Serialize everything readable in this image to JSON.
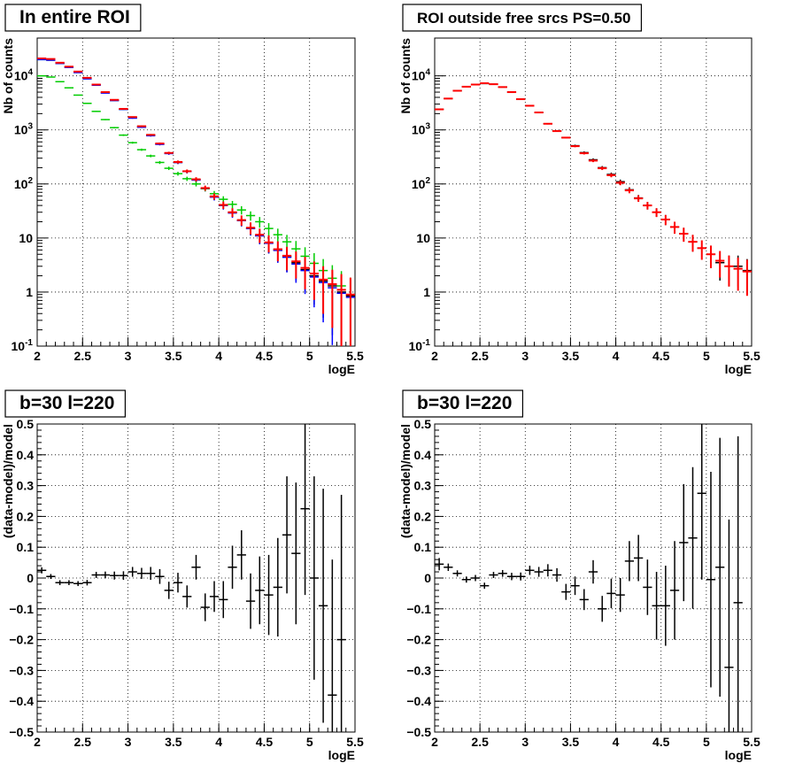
{
  "chart_data": [
    {
      "type": "scatter",
      "title": "In entire ROI",
      "xlabel": "logE",
      "ylabel": "Nb of counts",
      "xlim": [
        2,
        5.5
      ],
      "ylim": [
        0.1,
        50000
      ],
      "yscale": "log",
      "grid": true,
      "xticks": [
        "2",
        "2.5",
        "3",
        "3.5",
        "4",
        "4.5",
        "5",
        "5.5"
      ],
      "yticks": [
        "10^-1",
        "1",
        "10",
        "10^2",
        "10^3",
        "10^4"
      ],
      "series": [
        {
          "color": "#000000",
          "x": [
            2.05,
            2.15,
            2.25,
            2.35,
            2.45,
            2.55,
            2.65,
            2.75,
            2.85,
            2.95,
            3.05,
            3.15,
            3.25,
            3.35,
            3.45,
            3.55,
            3.65,
            3.75,
            3.85,
            3.95,
            4.05,
            4.15,
            4.25,
            4.35,
            4.45,
            4.55,
            4.65,
            4.75,
            4.85,
            4.95,
            5.05,
            5.15,
            5.25,
            5.35,
            5.45
          ],
          "y": [
            20000,
            19500,
            17000,
            14500,
            11800,
            9000,
            6800,
            4900,
            3500,
            2400,
            1700,
            1150,
            800,
            550,
            370,
            250,
            170,
            120,
            82,
            58,
            40,
            30,
            21,
            15,
            11,
            8,
            6,
            4.5,
            3.5,
            2.6,
            2.0,
            1.6,
            1.3,
            1.0,
            0.85
          ]
        },
        {
          "color": "#0000ff",
          "x": [
            2.05,
            2.15,
            2.25,
            2.35,
            2.45,
            2.55,
            2.65,
            2.75,
            2.85,
            2.95,
            3.05,
            3.15,
            3.25,
            3.35,
            3.45,
            3.55,
            3.65,
            3.75,
            3.85,
            3.95,
            4.05,
            4.15,
            4.25,
            4.35,
            4.45,
            4.55,
            4.65,
            4.75,
            4.85,
            4.95,
            5.05,
            5.15,
            5.25,
            5.35,
            5.45
          ],
          "y": [
            20000,
            19500,
            17000,
            14300,
            11500,
            8800,
            6700,
            4800,
            3500,
            2400,
            1650,
            1120,
            780,
            540,
            365,
            250,
            170,
            118,
            82,
            57,
            40,
            29,
            21,
            15,
            11,
            8,
            5.9,
            4.4,
            3.3,
            2.5,
            1.9,
            1.5,
            1.2,
            0.95,
            0.8
          ]
        },
        {
          "color": "#00cc00",
          "x": [
            2.05,
            2.15,
            2.25,
            2.35,
            2.45,
            2.55,
            2.65,
            2.75,
            2.85,
            2.95,
            3.05,
            3.15,
            3.25,
            3.35,
            3.45,
            3.55,
            3.65,
            3.75,
            3.85,
            3.95,
            4.05,
            4.15,
            4.25,
            4.35,
            4.45,
            4.55,
            4.65,
            4.75,
            4.85,
            4.95,
            5.05,
            5.15,
            5.25,
            5.35,
            5.45
          ],
          "y": [
            10000,
            9500,
            7800,
            6000,
            4400,
            3100,
            2200,
            1550,
            1100,
            800,
            580,
            430,
            330,
            250,
            195,
            155,
            125,
            100,
            82,
            66,
            52,
            42,
            33,
            26,
            20,
            15,
            11.5,
            8.5,
            6.3,
            4.6,
            3.4,
            2.5,
            1.8,
            1.3,
            0.9
          ]
        },
        {
          "color": "#ff0000",
          "x": [
            2.05,
            2.15,
            2.25,
            2.35,
            2.45,
            2.55,
            2.65,
            2.75,
            2.85,
            2.95,
            3.05,
            3.15,
            3.25,
            3.35,
            3.45,
            3.55,
            3.65,
            3.75,
            3.85,
            3.95,
            4.05,
            4.15,
            4.25,
            4.35,
            4.45,
            4.55,
            4.65,
            4.75,
            4.85,
            4.95,
            5.05,
            5.15,
            5.25,
            5.35,
            5.45
          ],
          "y": [
            21000,
            20500,
            17500,
            14800,
            12000,
            9200,
            6900,
            5000,
            3600,
            2450,
            1730,
            1170,
            810,
            560,
            375,
            255,
            172,
            122,
            84,
            59,
            41,
            30,
            21.5,
            15.5,
            11.5,
            8.3,
            6.2,
            4.7,
            3.7,
            2.8,
            2.2,
            1.7,
            1.4,
            1.1,
            0.9
          ]
        }
      ]
    },
    {
      "type": "scatter",
      "title": "ROI outside free srcs PS=0.50",
      "xlabel": "logE",
      "ylabel": "Nb of counts",
      "xlim": [
        2,
        5.5
      ],
      "ylim": [
        0.1,
        50000
      ],
      "yscale": "log",
      "grid": true,
      "xticks": [
        "2",
        "2.5",
        "3",
        "3.5",
        "4",
        "4.5",
        "5",
        "5.5"
      ],
      "yticks": [
        "10^-1",
        "1",
        "10",
        "10^2",
        "10^3",
        "10^4"
      ],
      "series": [
        {
          "color": "#000000",
          "x": [
            2.05,
            2.15,
            2.25,
            2.35,
            2.45,
            2.55,
            2.65,
            2.75,
            2.85,
            2.95,
            3.05,
            3.15,
            3.25,
            3.35,
            3.45,
            3.55,
            3.65,
            3.75,
            3.85,
            3.95,
            4.05,
            4.15,
            4.25,
            4.35,
            4.45,
            4.55,
            4.65,
            4.75,
            4.85,
            4.95,
            5.05,
            5.15,
            5.25,
            5.35,
            5.45
          ],
          "y": [
            2400,
            3800,
            5300,
            6300,
            6900,
            7200,
            7000,
            6200,
            5000,
            3700,
            2800,
            2100,
            1300,
            950,
            720,
            510,
            380,
            280,
            200,
            150,
            110,
            78,
            55,
            40,
            30,
            22,
            16,
            12,
            8.5,
            6.5,
            5,
            3.5,
            3.0,
            3.0,
            2.5
          ]
        },
        {
          "color": "#ff0000",
          "x": [
            2.05,
            2.15,
            2.25,
            2.35,
            2.45,
            2.55,
            2.65,
            2.75,
            2.85,
            2.95,
            3.05,
            3.15,
            3.25,
            3.35,
            3.45,
            3.55,
            3.65,
            3.75,
            3.85,
            3.95,
            4.05,
            4.15,
            4.25,
            4.35,
            4.45,
            4.55,
            4.65,
            4.75,
            4.85,
            4.95,
            5.05,
            5.15,
            5.25,
            5.35,
            5.45
          ],
          "y": [
            2400,
            3800,
            5300,
            6300,
            6900,
            7300,
            7000,
            6200,
            5000,
            3700,
            2800,
            2100,
            1300,
            950,
            720,
            500,
            370,
            270,
            195,
            145,
            105,
            76,
            54,
            40,
            30,
            22,
            16,
            12,
            8.5,
            6.5,
            5,
            3.8,
            3.0,
            2.7,
            2.4
          ]
        }
      ]
    },
    {
      "type": "scatter",
      "title": "b=30 l=220",
      "xlabel": "logE",
      "ylabel": "(data-model)/model",
      "xlim": [
        2,
        5.5
      ],
      "ylim": [
        -0.5,
        0.5
      ],
      "yscale": "linear",
      "grid": true,
      "xticks": [
        "2",
        "2.5",
        "3",
        "3.5",
        "4",
        "4.5",
        "5",
        "5.5"
      ],
      "yticks": [
        "-0.5",
        "-0.4",
        "-0.3",
        "-0.2",
        "-0.1",
        "0",
        "0.1",
        "0.2",
        "0.3",
        "0.4",
        "0.5"
      ],
      "series": [
        {
          "color": "#000000",
          "x": [
            2.05,
            2.15,
            2.25,
            2.35,
            2.45,
            2.55,
            2.65,
            2.75,
            2.85,
            2.95,
            3.05,
            3.15,
            3.25,
            3.35,
            3.45,
            3.55,
            3.65,
            3.75,
            3.85,
            3.95,
            4.05,
            4.15,
            4.25,
            4.35,
            4.45,
            4.55,
            4.65,
            4.75,
            4.85,
            4.95,
            5.05,
            5.15,
            5.25,
            5.35
          ],
          "y": [
            0.025,
            0.005,
            -0.015,
            -0.015,
            -0.018,
            -0.015,
            0.01,
            0.01,
            0.008,
            0.008,
            0.02,
            0.015,
            0.015,
            0.005,
            -0.04,
            -0.015,
            -0.06,
            0.035,
            -0.095,
            -0.06,
            -0.07,
            0.035,
            0.075,
            -0.075,
            -0.04,
            -0.055,
            -0.03,
            0.14,
            0.08,
            0.225,
            0.0,
            -0.09,
            -0.38,
            -0.2
          ],
          "yerr": [
            0.01,
            0.008,
            0.008,
            0.008,
            0.008,
            0.009,
            0.01,
            0.011,
            0.013,
            0.014,
            0.016,
            0.018,
            0.021,
            0.024,
            0.028,
            0.032,
            0.036,
            0.04,
            0.045,
            0.05,
            0.06,
            0.07,
            0.08,
            0.09,
            0.11,
            0.13,
            0.16,
            0.19,
            0.23,
            0.28,
            0.33,
            0.38,
            0.44,
            0.47
          ]
        }
      ]
    },
    {
      "type": "scatter",
      "title": "b=30 l=220",
      "xlabel": "logE",
      "ylabel": "(data-model)/model",
      "xlim": [
        2,
        5.5
      ],
      "ylim": [
        -0.5,
        0.5
      ],
      "yscale": "linear",
      "grid": true,
      "xticks": [
        "2",
        "2.5",
        "3",
        "3.5",
        "4",
        "4.5",
        "5",
        "5.5"
      ],
      "yticks": [
        "-0.5",
        "-0.4",
        "-0.3",
        "-0.2",
        "-0.1",
        "0",
        "0.1",
        "0.2",
        "0.3",
        "0.4",
        "0.5"
      ],
      "series": [
        {
          "color": "#000000",
          "x": [
            2.05,
            2.15,
            2.25,
            2.35,
            2.45,
            2.55,
            2.65,
            2.75,
            2.85,
            2.95,
            3.05,
            3.15,
            3.25,
            3.35,
            3.45,
            3.55,
            3.65,
            3.75,
            3.85,
            3.95,
            4.05,
            4.15,
            4.25,
            4.35,
            4.45,
            4.55,
            4.65,
            4.75,
            4.85,
            4.95,
            5.05,
            5.15,
            5.25,
            5.35
          ],
          "y": [
            0.045,
            0.035,
            0.015,
            -0.005,
            0.0,
            -0.025,
            0.01,
            0.015,
            0.005,
            0.005,
            0.025,
            0.02,
            0.025,
            0.01,
            -0.045,
            -0.025,
            -0.07,
            0.02,
            -0.1,
            -0.05,
            -0.055,
            0.055,
            0.065,
            -0.03,
            -0.09,
            -0.09,
            -0.04,
            0.115,
            0.13,
            0.275,
            -0.005,
            0.035,
            -0.29,
            -0.08
          ],
          "yerr": [
            0.02,
            0.012,
            0.01,
            0.01,
            0.01,
            0.01,
            0.01,
            0.011,
            0.012,
            0.013,
            0.015,
            0.016,
            0.02,
            0.022,
            0.026,
            0.03,
            0.034,
            0.038,
            0.042,
            0.048,
            0.055,
            0.065,
            0.075,
            0.09,
            0.11,
            0.13,
            0.16,
            0.19,
            0.23,
            0.28,
            0.35,
            0.42,
            0.48,
            0.54
          ]
        }
      ]
    }
  ]
}
